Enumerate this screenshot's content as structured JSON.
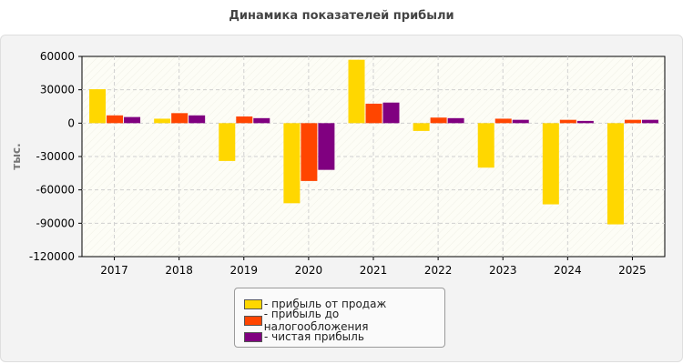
{
  "chart_data": {
    "type": "bar",
    "title": "Динамика показателей прибыли",
    "ylabel": "тыс.",
    "xlabel": "",
    "categories": [
      "2017",
      "2018",
      "2019",
      "2020",
      "2021",
      "2022",
      "2023",
      "2024",
      "2025"
    ],
    "ylim": [
      -120000,
      60000
    ],
    "yticks": [
      60000,
      30000,
      0,
      -30000,
      -60000,
      -90000,
      -120000
    ],
    "grid": true,
    "legend_position": "bottom-center",
    "series": [
      {
        "name": "прибыль от продаж",
        "color": "#FFD700",
        "values": [
          30500,
          4000,
          -34000,
          -72000,
          57000,
          -7000,
          -40000,
          -73000,
          -91000
        ]
      },
      {
        "name": "прибыль до налогообложения",
        "color": "#FF4500",
        "values": [
          7000,
          9000,
          6000,
          -52000,
          17500,
          5000,
          4000,
          3000,
          3000
        ]
      },
      {
        "name": "чистая прибыль",
        "color": "#800080",
        "values": [
          5500,
          7000,
          4500,
          -42000,
          18500,
          4500,
          3000,
          2000,
          3000
        ]
      }
    ]
  }
}
